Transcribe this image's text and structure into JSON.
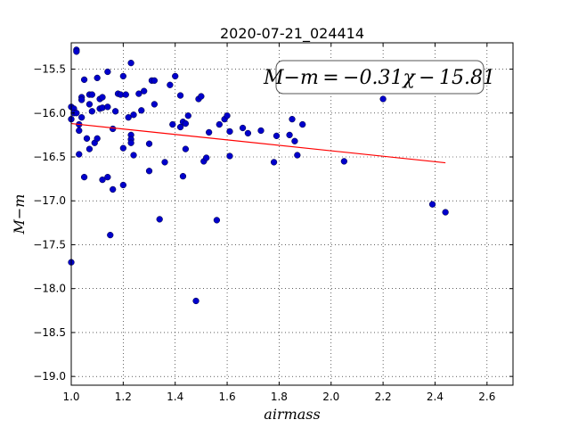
{
  "chart_data": {
    "type": "scatter",
    "title": "2020-07-21_024414",
    "xlabel": "airmass",
    "ylabel": "M−m",
    "xlim": [
      1.0,
      2.7
    ],
    "ylim": [
      -19.1,
      -15.2
    ],
    "y_inverted": false,
    "x_ticks": [
      1.0,
      1.2,
      1.4,
      1.6,
      1.8,
      2.0,
      2.2,
      2.4,
      2.6
    ],
    "x_tick_labels": [
      "1.0",
      "1.2",
      "1.4",
      "1.6",
      "1.8",
      "2.0",
      "2.2",
      "2.4",
      "2.6"
    ],
    "y_ticks": [
      -15.5,
      -16.0,
      -16.5,
      -17.0,
      -17.5,
      -18.0,
      -18.5,
      -19.0
    ],
    "y_tick_labels": [
      "−15.5",
      "−16.0",
      "−16.5",
      "−17.0",
      "−17.5",
      "−18.0",
      "−18.5",
      "−19.0"
    ],
    "grid": true,
    "grid_style": "dotted",
    "annotation": "M−m = −0.31χ − 15.81",
    "annotation_placement": "top-right",
    "fit_line": {
      "slope": -0.31,
      "intercept": -15.81,
      "x_range": [
        1.0,
        2.44
      ],
      "color": "#ff0000"
    },
    "point_color": "#0000cc",
    "points": [
      [
        1.0,
        -15.93
      ],
      [
        1.0,
        -16.07
      ],
      [
        1.0,
        -17.7
      ],
      [
        1.01,
        -15.95
      ],
      [
        1.01,
        -16.0
      ],
      [
        1.02,
        -15.28
      ],
      [
        1.02,
        -15.3
      ],
      [
        1.02,
        -16.0
      ],
      [
        1.03,
        -16.13
      ],
      [
        1.03,
        -16.2
      ],
      [
        1.03,
        -16.47
      ],
      [
        1.04,
        -15.82
      ],
      [
        1.04,
        -15.85
      ],
      [
        1.04,
        -16.05
      ],
      [
        1.05,
        -15.62
      ],
      [
        1.05,
        -16.73
      ],
      [
        1.06,
        -16.29
      ],
      [
        1.07,
        -15.79
      ],
      [
        1.07,
        -15.9
      ],
      [
        1.07,
        -16.41
      ],
      [
        1.08,
        -15.79
      ],
      [
        1.08,
        -15.98
      ],
      [
        1.09,
        -16.34
      ],
      [
        1.1,
        -16.29
      ],
      [
        1.1,
        -15.6
      ],
      [
        1.11,
        -15.84
      ],
      [
        1.11,
        -15.95
      ],
      [
        1.12,
        -15.82
      ],
      [
        1.12,
        -15.94
      ],
      [
        1.12,
        -16.76
      ],
      [
        1.14,
        -15.53
      ],
      [
        1.14,
        -15.93
      ],
      [
        1.14,
        -16.73
      ],
      [
        1.15,
        -17.39
      ],
      [
        1.16,
        -16.18
      ],
      [
        1.16,
        -16.87
      ],
      [
        1.17,
        -15.98
      ],
      [
        1.18,
        -15.78
      ],
      [
        1.19,
        -15.79
      ],
      [
        1.2,
        -15.58
      ],
      [
        1.2,
        -16.4
      ],
      [
        1.2,
        -16.82
      ],
      [
        1.21,
        -15.79
      ],
      [
        1.22,
        -16.05
      ],
      [
        1.23,
        -15.43
      ],
      [
        1.23,
        -16.25
      ],
      [
        1.23,
        -16.3
      ],
      [
        1.23,
        -16.34
      ],
      [
        1.24,
        -16.02
      ],
      [
        1.24,
        -16.48
      ],
      [
        1.26,
        -15.78
      ],
      [
        1.27,
        -15.97
      ],
      [
        1.28,
        -15.75
      ],
      [
        1.3,
        -16.35
      ],
      [
        1.3,
        -16.66
      ],
      [
        1.31,
        -15.63
      ],
      [
        1.32,
        -15.63
      ],
      [
        1.32,
        -15.9
      ],
      [
        1.34,
        -17.21
      ],
      [
        1.36,
        -16.56
      ],
      [
        1.38,
        -15.68
      ],
      [
        1.39,
        -16.13
      ],
      [
        1.4,
        -15.58
      ],
      [
        1.42,
        -15.8
      ],
      [
        1.42,
        -16.16
      ],
      [
        1.43,
        -16.1
      ],
      [
        1.43,
        -16.72
      ],
      [
        1.44,
        -16.12
      ],
      [
        1.44,
        -16.41
      ],
      [
        1.45,
        -16.03
      ],
      [
        1.48,
        -18.14
      ],
      [
        1.49,
        -15.84
      ],
      [
        1.5,
        -15.81
      ],
      [
        1.51,
        -16.55
      ],
      [
        1.52,
        -16.51
      ],
      [
        1.53,
        -16.22
      ],
      [
        1.56,
        -17.22
      ],
      [
        1.57,
        -16.13
      ],
      [
        1.59,
        -16.07
      ],
      [
        1.6,
        -16.03
      ],
      [
        1.61,
        -16.21
      ],
      [
        1.61,
        -16.49
      ],
      [
        1.66,
        -16.17
      ],
      [
        1.68,
        -16.23
      ],
      [
        1.73,
        -16.2
      ],
      [
        1.78,
        -16.56
      ],
      [
        1.79,
        -16.26
      ],
      [
        1.84,
        -16.25
      ],
      [
        1.85,
        -16.07
      ],
      [
        1.86,
        -16.32
      ],
      [
        1.87,
        -16.48
      ],
      [
        1.89,
        -16.13
      ],
      [
        2.05,
        -16.55
      ],
      [
        2.2,
        -15.84
      ],
      [
        2.39,
        -17.04
      ],
      [
        2.44,
        -17.13
      ]
    ]
  }
}
